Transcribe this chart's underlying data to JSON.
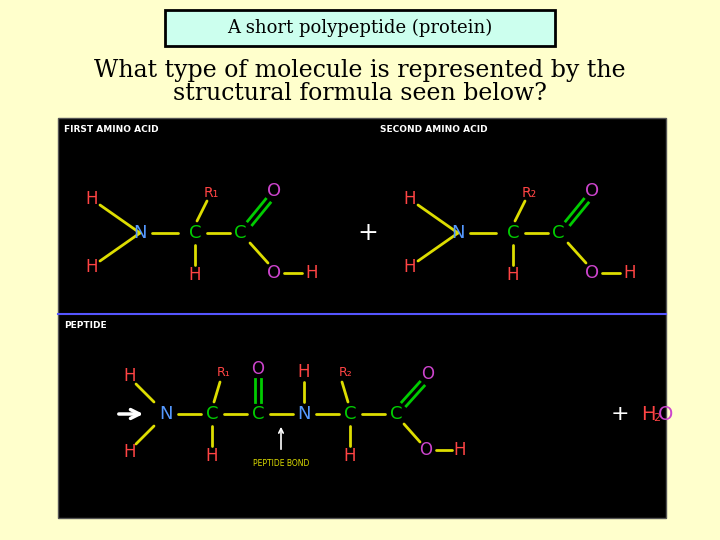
{
  "background_color": "#ffffcc",
  "title_box_text": "A short polypeptide (protein)",
  "title_box_bg": "#ccffee",
  "title_box_border": "#000000",
  "question_line1": "What type of molecule is represented by the",
  "question_line2": "structural formula seen below?",
  "question_color": "#000000",
  "fig_width": 7.2,
  "fig_height": 5.4,
  "dpi": 100
}
